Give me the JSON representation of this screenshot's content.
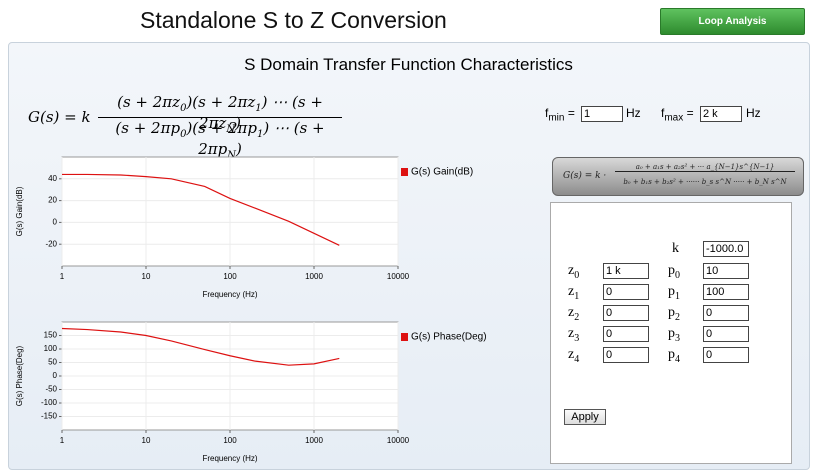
{
  "header": {
    "title": "Standalone S to Z Conversion",
    "button": "Loop Analysis"
  },
  "section_title": "S Domain Transfer Function Characteristics",
  "formula": {
    "lhs": "G(s) = k",
    "numerator": [
      {
        "text": "(s + 2πz",
        "sub": "0"
      },
      {
        "text": ")(s + 2πz",
        "sub": "1"
      },
      {
        "text": ") ⋯ (s + 2πz",
        "sub": "N"
      },
      {
        "text": ")"
      }
    ],
    "denominator": [
      {
        "text": "(s + 2πp",
        "sub": "0"
      },
      {
        "text": ")(s + 2πp",
        "sub": "1"
      },
      {
        "text": ") ⋯ (s + 2πp",
        "sub": "N"
      },
      {
        "text": ")"
      }
    ]
  },
  "range": {
    "fmin_label": "f",
    "fmin_sub": "min",
    "fmin_eq": "=",
    "fmin": "1",
    "fmin_unit": "Hz",
    "fmax_label": "f",
    "fmax_sub": "max",
    "fmax_eq": "=",
    "fmax": "2 k",
    "fmax_unit": "Hz"
  },
  "poly_button": {
    "lhs": "G(s) = k ·",
    "numerator": "a₀ + a₁s + a₂s² + ··· a_{N−1}s^{N−1}",
    "denominator": "b₀ + b₁s + b₂s² + ······ b_s s^N ····· + b_N s^N"
  },
  "params": {
    "k_label": "k",
    "k": "-1000.0",
    "zeros": [
      {
        "label": "z",
        "sub": "0",
        "value": "1 k"
      },
      {
        "label": "z",
        "sub": "1",
        "value": "0"
      },
      {
        "label": "z",
        "sub": "2",
        "value": "0"
      },
      {
        "label": "z",
        "sub": "3",
        "value": "0"
      },
      {
        "label": "z",
        "sub": "4",
        "value": "0"
      }
    ],
    "poles": [
      {
        "label": "p",
        "sub": "0",
        "value": "10"
      },
      {
        "label": "p",
        "sub": "1",
        "value": "100"
      },
      {
        "label": "p",
        "sub": "2",
        "value": "0"
      },
      {
        "label": "p",
        "sub": "3",
        "value": "0"
      },
      {
        "label": "p",
        "sub": "4",
        "value": "0"
      }
    ],
    "apply": "Apply"
  },
  "chart_data": [
    {
      "type": "line",
      "xlabel": "Frequency (Hz)",
      "ylabel": "G(s) Gain(dB)",
      "xlog": true,
      "grid": true,
      "legend": "right",
      "x": [
        1,
        2,
        5,
        10,
        20,
        50,
        100,
        200,
        500,
        1000,
        2000
      ],
      "xlim": [
        1,
        10000
      ],
      "xticks": [
        1,
        10,
        100,
        1000,
        10000
      ],
      "ylim": [
        -40,
        60
      ],
      "yticks": [
        -20,
        0,
        20,
        40
      ],
      "series": [
        {
          "name": "G(s) Gain(dB)",
          "color": "#dd1111",
          "values": [
            44,
            44,
            43.5,
            42,
            40,
            33,
            22,
            13,
            1,
            -10,
            -21
          ]
        }
      ]
    },
    {
      "type": "line",
      "xlabel": "Frequency (Hz)",
      "ylabel": "G(s) Phase(Deg)",
      "xlog": true,
      "grid": true,
      "legend": "right",
      "x": [
        1,
        2,
        5,
        10,
        20,
        50,
        100,
        200,
        500,
        1000,
        2000
      ],
      "xlim": [
        1,
        10000
      ],
      "xticks": [
        1,
        10,
        100,
        1000,
        10000
      ],
      "ylim": [
        -200,
        200
      ],
      "yticks": [
        -150,
        -100,
        -50,
        0,
        50,
        100,
        150
      ],
      "series": [
        {
          "name": "G(s) Phase(Deg)",
          "color": "#dd1111",
          "values": [
            176,
            172,
            163,
            150,
            130,
            98,
            75,
            55,
            40,
            45,
            65
          ]
        }
      ]
    }
  ]
}
